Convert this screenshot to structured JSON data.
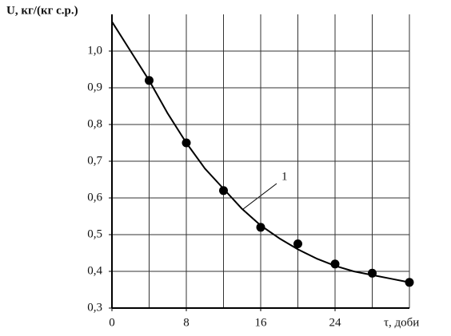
{
  "chart_data": {
    "type": "line",
    "y_label": "U, кг/(кг с.р.)",
    "x_label": "τ, доби",
    "annotation": "1",
    "xlim": [
      0,
      32
    ],
    "ylim": [
      0.3,
      1.1
    ],
    "xticks": [
      0,
      8,
      16,
      24
    ],
    "xgrid": [
      0,
      4,
      8,
      12,
      16,
      20,
      24,
      28,
      32
    ],
    "yticks": [
      {
        "value": 0.3,
        "label": "0,3"
      },
      {
        "value": 0.4,
        "label": "0,4"
      },
      {
        "value": 0.5,
        "label": "0,5"
      },
      {
        "value": 0.6,
        "label": "0,6"
      },
      {
        "value": 0.7,
        "label": "0,7"
      },
      {
        "value": 0.8,
        "label": "0,8"
      },
      {
        "value": 0.9,
        "label": "0,9"
      },
      {
        "value": 1.0,
        "label": "1,0"
      }
    ],
    "ygrid": [
      0.3,
      0.4,
      0.5,
      0.6,
      0.7,
      0.8,
      0.9,
      1.0
    ],
    "grid": true,
    "series": [
      {
        "style": "curve",
        "color": "#000000",
        "x": [
          0,
          2,
          4,
          6,
          8,
          10,
          12,
          14,
          16,
          18,
          20,
          22,
          24,
          26,
          28,
          30,
          32
        ],
        "values": [
          1.08,
          1.0,
          0.92,
          0.83,
          0.75,
          0.68,
          0.625,
          0.57,
          0.525,
          0.49,
          0.46,
          0.435,
          0.415,
          0.4,
          0.39,
          0.38,
          0.37
        ]
      },
      {
        "style": "points",
        "color": "#000000",
        "x": [
          4,
          8,
          12,
          16,
          20,
          24,
          28,
          32
        ],
        "values": [
          0.92,
          0.75,
          0.62,
          0.52,
          0.475,
          0.42,
          0.395,
          0.37
        ]
      }
    ]
  }
}
